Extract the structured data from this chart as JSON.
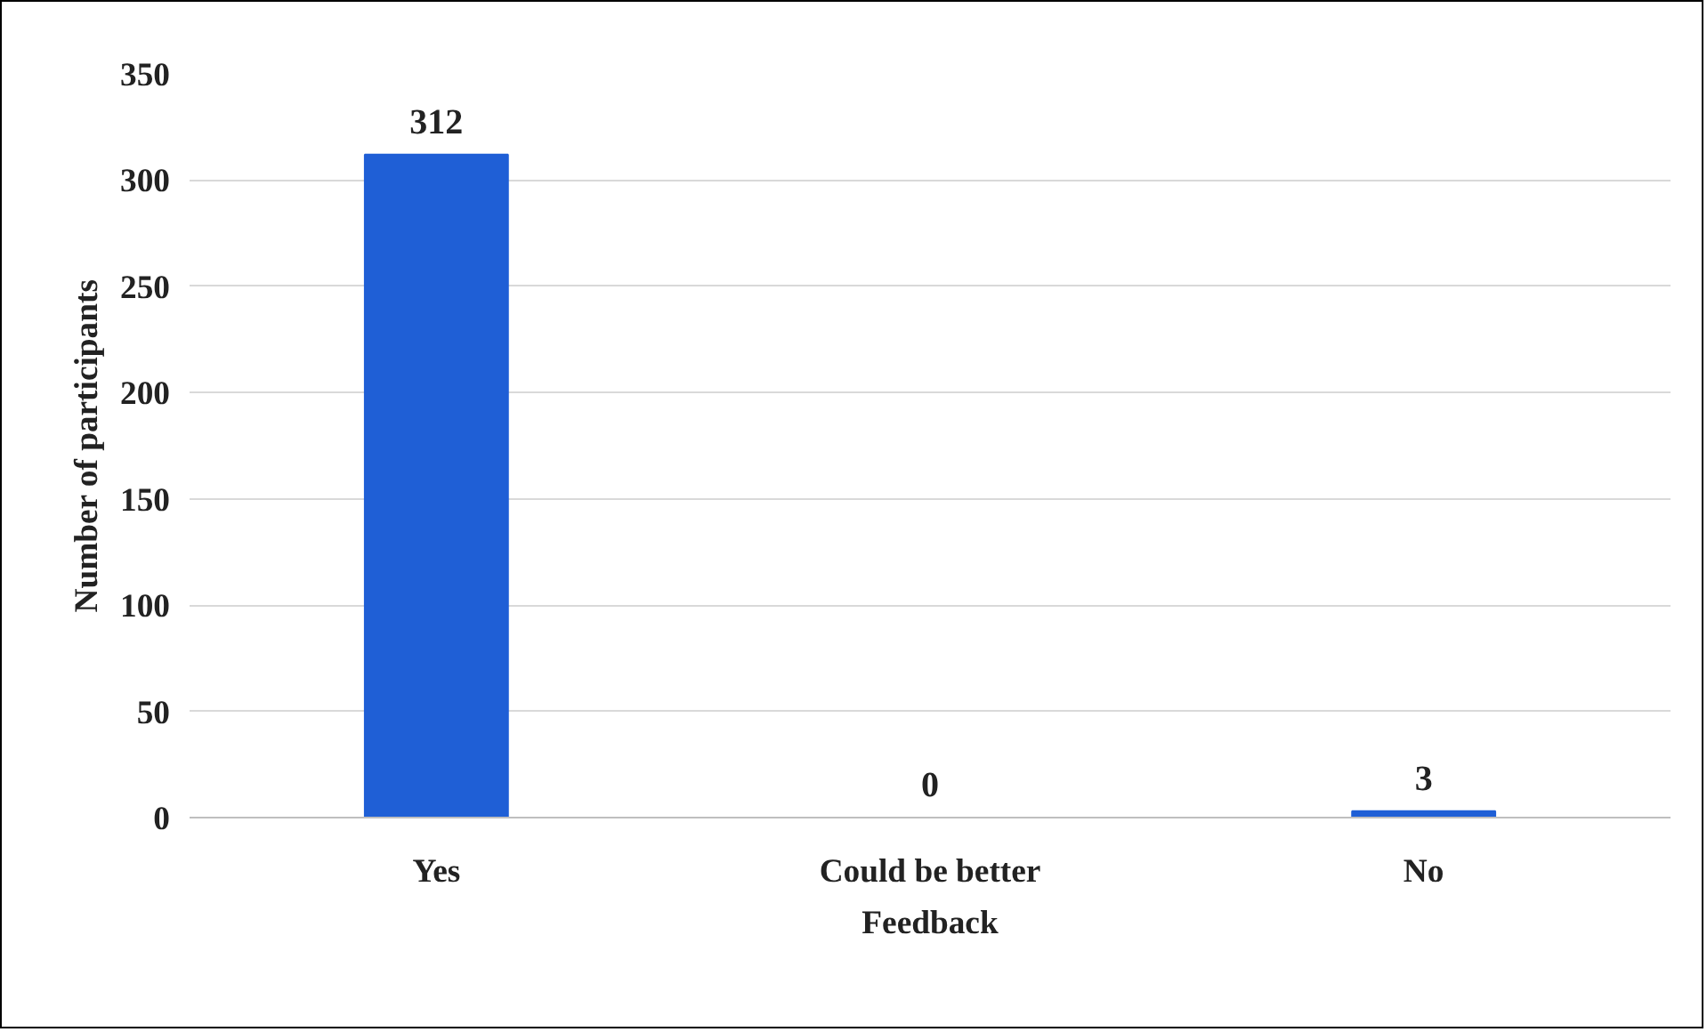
{
  "chart_data": {
    "type": "bar",
    "xlabel": "Feedback",
    "ylabel": "Number of participants",
    "categories": [
      "Yes",
      "Could be better",
      "No"
    ],
    "values": [
      312,
      0,
      3
    ],
    "color": "#1f5fd6",
    "ylim": [
      0,
      350
    ],
    "yticks": [
      0,
      50,
      100,
      150,
      200,
      250,
      300,
      350
    ],
    "grid": "y",
    "data_labels": true
  }
}
